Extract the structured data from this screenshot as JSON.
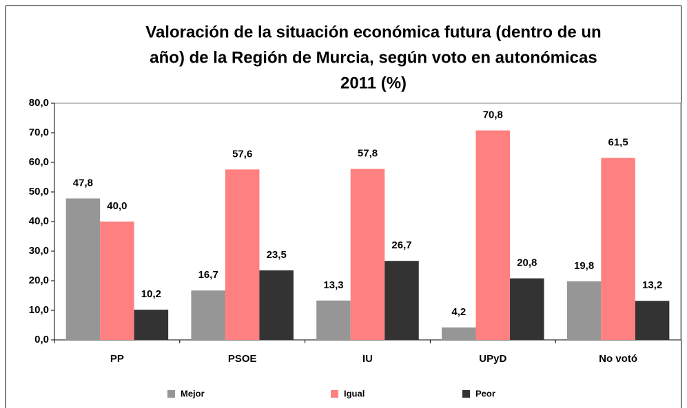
{
  "chart_data": {
    "type": "bar",
    "title": [
      "Valoración de la situación económica futura (dentro de un",
      "año) de la Región de Murcia, según voto en autonómicas",
      "2011 (%)"
    ],
    "categories": [
      "PP",
      "PSOE",
      "IU",
      "UPyD",
      "No votó"
    ],
    "series": [
      {
        "name": "Mejor",
        "color": "#969696",
        "values": [
          47.8,
          16.7,
          13.3,
          4.2,
          19.8
        ],
        "value_labels": [
          "47,8",
          "16,7",
          "13,3",
          "4,2",
          "19,8"
        ]
      },
      {
        "name": "Igual",
        "color": "#ff8080",
        "values": [
          40.0,
          57.6,
          57.8,
          70.8,
          61.5
        ],
        "value_labels": [
          "40,0",
          "57,6",
          "57,8",
          "70,8",
          "61,5"
        ]
      },
      {
        "name": "Peor",
        "color": "#333333",
        "values": [
          10.2,
          23.5,
          26.7,
          20.8,
          13.2
        ],
        "value_labels": [
          "10,2",
          "23,5",
          "26,7",
          "20,8",
          "13,2"
        ]
      }
    ],
    "ylim": [
      0,
      80
    ],
    "yticks": [
      {
        "value": 0,
        "label": "0,0"
      },
      {
        "value": 10,
        "label": "10,0"
      },
      {
        "value": 20,
        "label": "20,0"
      },
      {
        "value": 30,
        "label": "30,0"
      },
      {
        "value": 40,
        "label": "40,0"
      },
      {
        "value": 50,
        "label": "50,0"
      },
      {
        "value": 60,
        "label": "60,0"
      },
      {
        "value": 70,
        "label": "70,0"
      },
      {
        "value": 80,
        "label": "80,0"
      }
    ],
    "grid": false,
    "legend": "bottom"
  }
}
